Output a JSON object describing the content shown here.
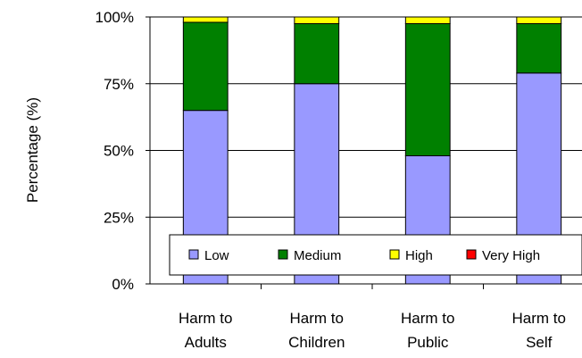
{
  "chart_data": {
    "type": "bar",
    "stacked": true,
    "ylabel": "Percentage (%)",
    "xlabel": "",
    "ylim": [
      0,
      100
    ],
    "yticks": [
      "0%",
      "25%",
      "50%",
      "75%",
      "100%"
    ],
    "categories": [
      [
        "Harm to",
        "Adults"
      ],
      [
        "Harm to",
        "Children"
      ],
      [
        "Harm to",
        "Public"
      ],
      [
        "Harm to",
        "Self"
      ]
    ],
    "series": [
      {
        "name": "Low",
        "color": "#9999ff",
        "values": [
          65,
          75,
          48,
          79
        ]
      },
      {
        "name": "Medium",
        "color": "#008000",
        "values": [
          33,
          22.5,
          49.5,
          18.5
        ]
      },
      {
        "name": "High",
        "color": "#ffff00",
        "values": [
          2,
          2.5,
          2.5,
          2.5
        ]
      },
      {
        "name": "Very High",
        "color": "#ff0000",
        "values": [
          0,
          0,
          0,
          0
        ]
      }
    ],
    "legend_position": "bottom-inside",
    "grid": "horizontal"
  }
}
